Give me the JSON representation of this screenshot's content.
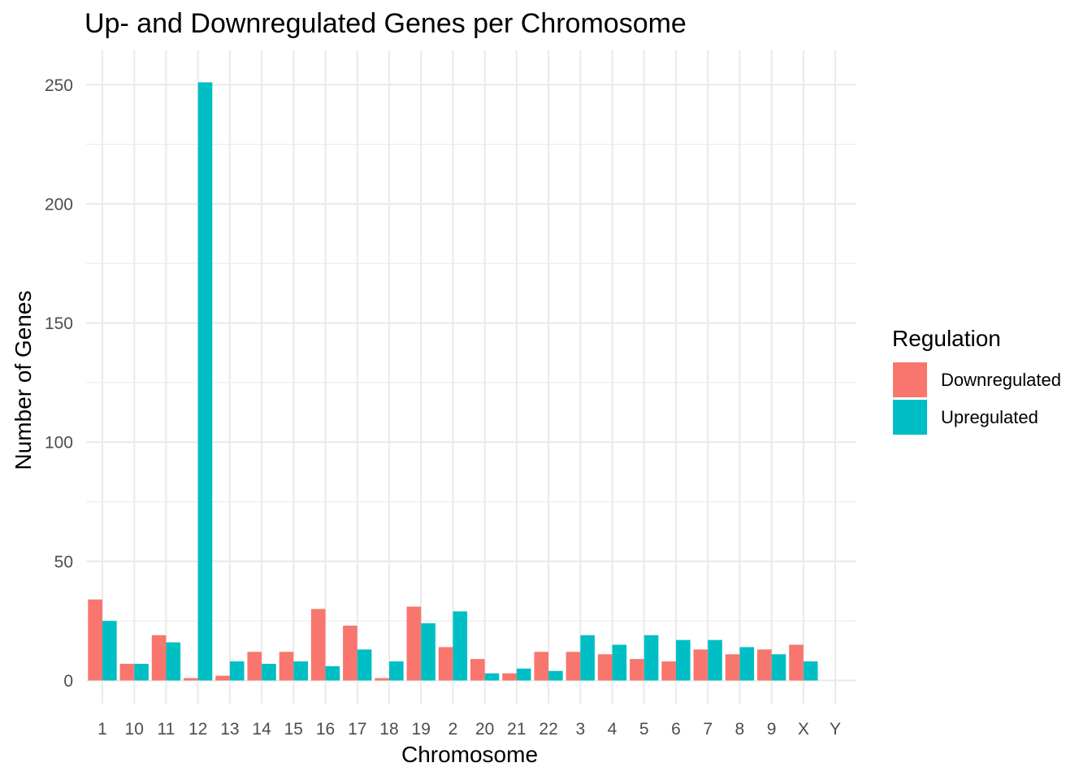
{
  "chart_data": {
    "type": "bar",
    "title": "Up- and Downregulated Genes per Chromosome",
    "xlabel": "Chromosome",
    "ylabel": "Number of Genes",
    "categories": [
      "1",
      "10",
      "11",
      "12",
      "13",
      "14",
      "15",
      "16",
      "17",
      "18",
      "19",
      "2",
      "20",
      "21",
      "22",
      "3",
      "4",
      "5",
      "6",
      "7",
      "8",
      "9",
      "X",
      "Y"
    ],
    "series": [
      {
        "name": "Downregulated",
        "color": "#F8766D",
        "values": [
          34,
          7,
          19,
          1,
          2,
          12,
          12,
          30,
          23,
          1,
          31,
          14,
          9,
          3,
          12,
          12,
          11,
          9,
          8,
          13,
          11,
          13,
          15,
          0
        ]
      },
      {
        "name": "Upregulated",
        "color": "#00BFC4",
        "values": [
          25,
          7,
          16,
          251,
          8,
          7,
          8,
          6,
          13,
          8,
          24,
          29,
          3,
          5,
          4,
          19,
          15,
          19,
          17,
          17,
          14,
          11,
          8,
          0
        ]
      }
    ],
    "ylim": [
      0,
      260
    ],
    "yticks": [
      0,
      50,
      100,
      150,
      200,
      250
    ],
    "grid": true,
    "legend": {
      "title": "Regulation",
      "position": "right"
    }
  }
}
